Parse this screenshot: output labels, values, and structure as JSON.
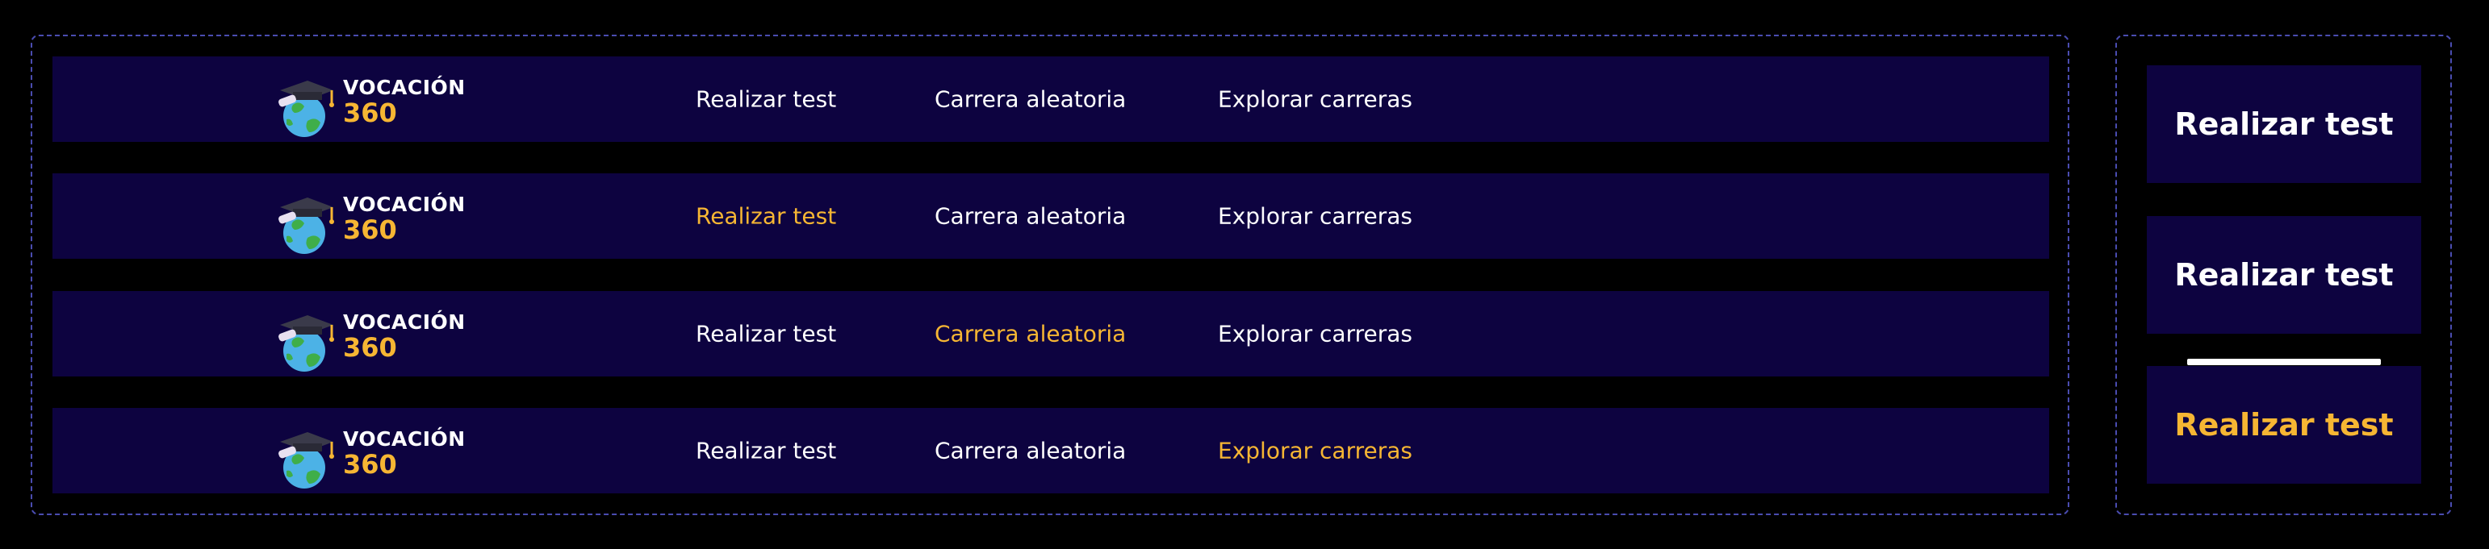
{
  "logo": {
    "name": "VOCACIÓN",
    "number": "360"
  },
  "navbars": [
    {
      "variant": "default",
      "links": [
        "Realizar test",
        "Carrera aleatoria",
        "Explorar carreras"
      ],
      "active_index": -1
    },
    {
      "variant": "test-active",
      "links": [
        "Realizar test",
        "Carrera aleatoria",
        "Explorar carreras"
      ],
      "active_index": 0
    },
    {
      "variant": "random-active",
      "links": [
        "Realizar test",
        "Carrera aleatoria",
        "Explorar carreras"
      ],
      "active_index": 1
    },
    {
      "variant": "explore-active",
      "links": [
        "Realizar test",
        "Carrera aleatoria",
        "Explorar carreras"
      ],
      "active_index": 2
    }
  ],
  "buttons": [
    {
      "label": "Realizar test",
      "state": "default"
    },
    {
      "label": "Realizar test",
      "state": "hover"
    },
    {
      "label": "Realizar test",
      "state": "active"
    }
  ],
  "colors": {
    "background": "#000000",
    "navbar": "#0d0340",
    "text": "#ffffff",
    "accent": "#f6b633",
    "frame": "#4a4cb0"
  }
}
